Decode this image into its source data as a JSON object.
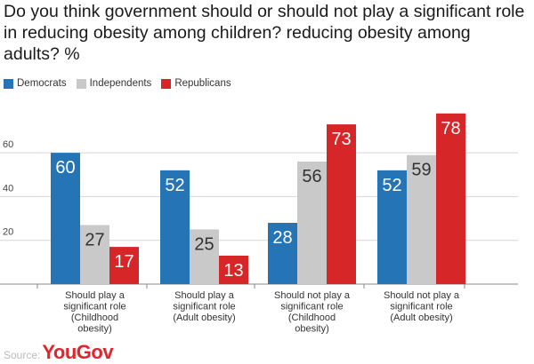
{
  "title": "Do you think government should or should not play a significant role in reducing obesity among children? reducing obesity among adults? %",
  "source_label": "Source:",
  "logo_text": "YouGov",
  "colors": {
    "democrats": "#2474b6",
    "independents": "#c9c9c9",
    "republicans": "#d62628",
    "grid": "#d6d6d6",
    "logo": "#e0252c"
  },
  "chart_data": {
    "type": "bar",
    "title": "Do you think government should or should not play a significant role in reducing obesity among children? reducing obesity among adults? %",
    "xlabel": "",
    "ylabel": "",
    "ylim": [
      0,
      84
    ],
    "yticks": [
      20,
      40,
      60
    ],
    "grid": true,
    "legend_position": "top-left",
    "categories": [
      [
        "Should play a",
        "significant role",
        "(Childhood",
        "obesity)"
      ],
      [
        "Should play a",
        "significant role",
        "(Adult obesity)"
      ],
      [
        "Should not play a",
        "significant role",
        "(Childhood",
        "obesity)"
      ],
      [
        "Should not play a",
        "significant role",
        "(Adult obesity)"
      ]
    ],
    "series": [
      {
        "name": "Democrats",
        "color": "#2474b6",
        "label_color": "#ffffff",
        "values": [
          60,
          52,
          28,
          52
        ]
      },
      {
        "name": "Independents",
        "color": "#c9c9c9",
        "label_color": "#333333",
        "values": [
          27,
          25,
          56,
          59
        ]
      },
      {
        "name": "Republicans",
        "color": "#d62628",
        "label_color": "#ffffff",
        "values": [
          17,
          13,
          73,
          78
        ]
      }
    ]
  }
}
